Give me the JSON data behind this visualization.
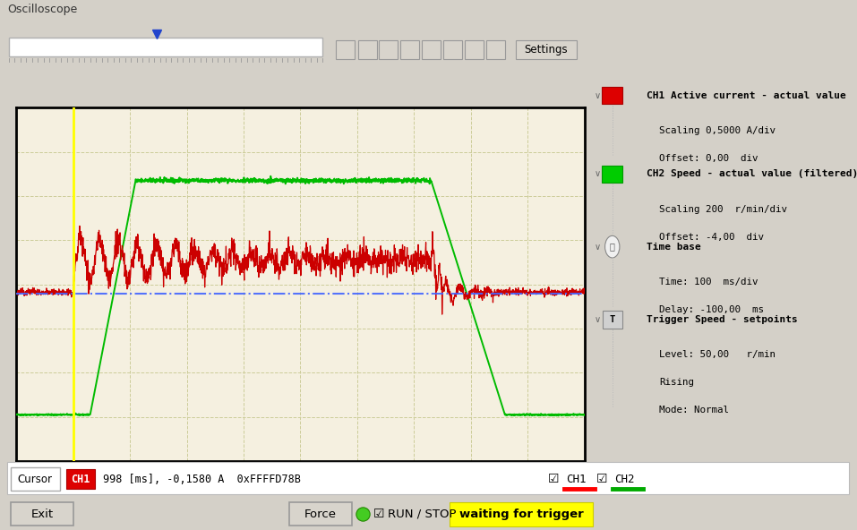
{
  "title": "Oscilloscope",
  "bg_outer": "#d4d0c8",
  "bg_title": "#dce4f0",
  "bg_toolbar": "#d4d0c8",
  "bg_plot": "#f5f0e0",
  "bg_panel": "#ffffff",
  "bg_bottom": "#d4d0c8",
  "plot_border": "#000000",
  "grid_color": "#cccc99",
  "x_label": "100 [ms] / div",
  "x_label_color": "#3333cc",
  "ch1_color": "#cc0000",
  "ch2_color": "#00bb00",
  "cursor_color": "#ffff00",
  "blue_dash_color": "#4466ff",
  "ch1_label": "CH1 Active current - actual value",
  "ch1_scaling": "Scaling 0,5000 A/div",
  "ch1_offset": "Offset: 0,00  div",
  "ch2_label": "CH2 Speed - actual value (filtered)",
  "ch2_scaling": "Scaling 200  r/min/div",
  "ch2_offset": "Offset: -4,00  div",
  "tb_label": "Time base",
  "tb_time": "Time: 100  ms/div",
  "tb_delay": "Delay: -100,00  ms",
  "trig_label": "Trigger Speed - setpoints",
  "trig_level": "Level: 50,00   r/min",
  "trig_rising": "Rising",
  "trig_mode": "Mode: Normal",
  "cursor_label": "Cursor",
  "cursor_ch": "CH1",
  "cursor_val": "998 [ms], -0,1580 A  0xFFFFD78B",
  "ch1_check": "CH1",
  "ch2_check": "CH2",
  "status_text": "waiting for trigger",
  "run_stop_text": "RUN / STOP",
  "exit_text": "Exit",
  "force_text": "Force",
  "settings_text": "Settings"
}
